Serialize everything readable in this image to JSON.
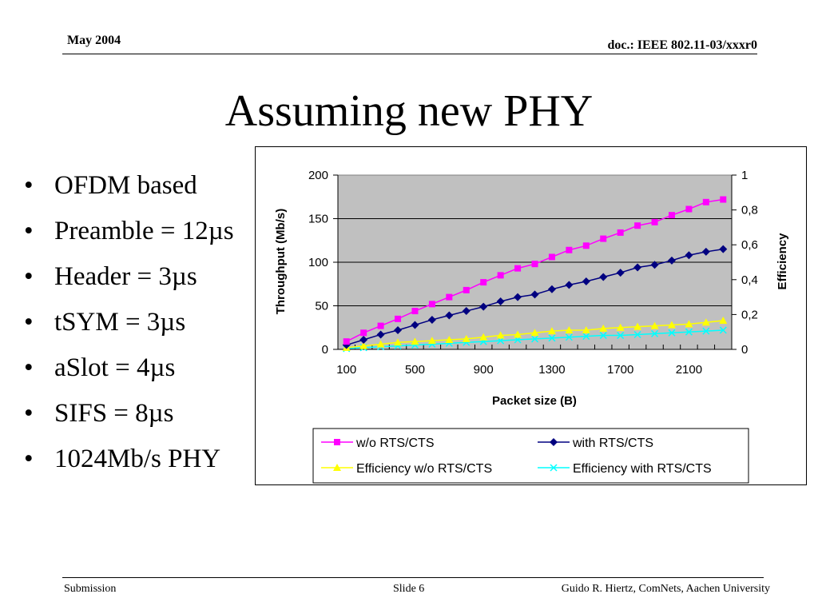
{
  "header": {
    "date": "May 2004",
    "doc": "doc.: IEEE 802.11-03/xxxr0"
  },
  "slide": {
    "title": "Assuming new PHY",
    "bullets": [
      "OFDM based",
      "Preamble = 12µs",
      "Header = 3µs",
      "tSYM = 3µs",
      "aSlot = 4µs",
      "SIFS = 8µs",
      "1024Mb/s PHY"
    ]
  },
  "footer": {
    "left": "Submission",
    "center": "Slide 6",
    "right": "Guido R. Hiertz, ComNets, Aachen University"
  },
  "chart_data": {
    "type": "line",
    "title": "",
    "xlabel": "Packet size (B)",
    "ylabel": "Throughput (Mb/s)",
    "y2label": "Efficiency",
    "x": [
      100,
      200,
      300,
      400,
      500,
      600,
      700,
      800,
      900,
      1000,
      1100,
      1200,
      1300,
      1400,
      1500,
      1600,
      1700,
      1800,
      1900,
      2000,
      2100,
      2200,
      2300
    ],
    "x_tick_labels": [
      "100",
      "500",
      "900",
      "1300",
      "1700",
      "2100"
    ],
    "ylim": [
      0,
      200
    ],
    "y_ticks": [
      "0",
      "50",
      "100",
      "150",
      "200"
    ],
    "y2lim": [
      0,
      1
    ],
    "y2_ticks": [
      "0",
      "0,2",
      "0,4",
      "0,6",
      "0,8",
      "1"
    ],
    "grid": "horizontal",
    "plot_background": "#c0c0c0",
    "legend_position": "bottom",
    "series": [
      {
        "name": "w/o RTS/CTS",
        "axis": "left",
        "marker": "square",
        "color": "#ff00ff",
        "values": [
          9,
          19,
          27,
          35,
          44,
          52,
          60,
          68,
          77,
          85,
          93,
          98,
          106,
          114,
          119,
          127,
          134,
          142,
          146,
          154,
          161,
          169,
          172
        ]
      },
      {
        "name": "with RTS/CTS",
        "axis": "left",
        "marker": "diamond",
        "color": "#000080",
        "values": [
          5,
          11,
          17,
          22,
          28,
          34,
          39,
          44,
          49,
          55,
          60,
          63,
          69,
          74,
          78,
          83,
          88,
          94,
          97,
          102,
          108,
          112,
          115
        ]
      },
      {
        "name": "Efficiency w/o RTS/CTS",
        "axis": "right",
        "marker": "triangle",
        "color": "#ffff00",
        "values": [
          0.01,
          0.02,
          0.03,
          0.04,
          0.045,
          0.05,
          0.055,
          0.06,
          0.07,
          0.08,
          0.085,
          0.095,
          0.105,
          0.11,
          0.11,
          0.12,
          0.125,
          0.13,
          0.135,
          0.14,
          0.145,
          0.155,
          0.165
        ]
      },
      {
        "name": "Efficiency with RTS/CTS",
        "axis": "right",
        "marker": "x",
        "color": "#00ffff",
        "values": [
          0.005,
          0.01,
          0.015,
          0.02,
          0.025,
          0.03,
          0.035,
          0.04,
          0.045,
          0.05,
          0.055,
          0.06,
          0.065,
          0.07,
          0.075,
          0.08,
          0.08,
          0.085,
          0.09,
          0.095,
          0.1,
          0.105,
          0.11
        ]
      }
    ]
  }
}
